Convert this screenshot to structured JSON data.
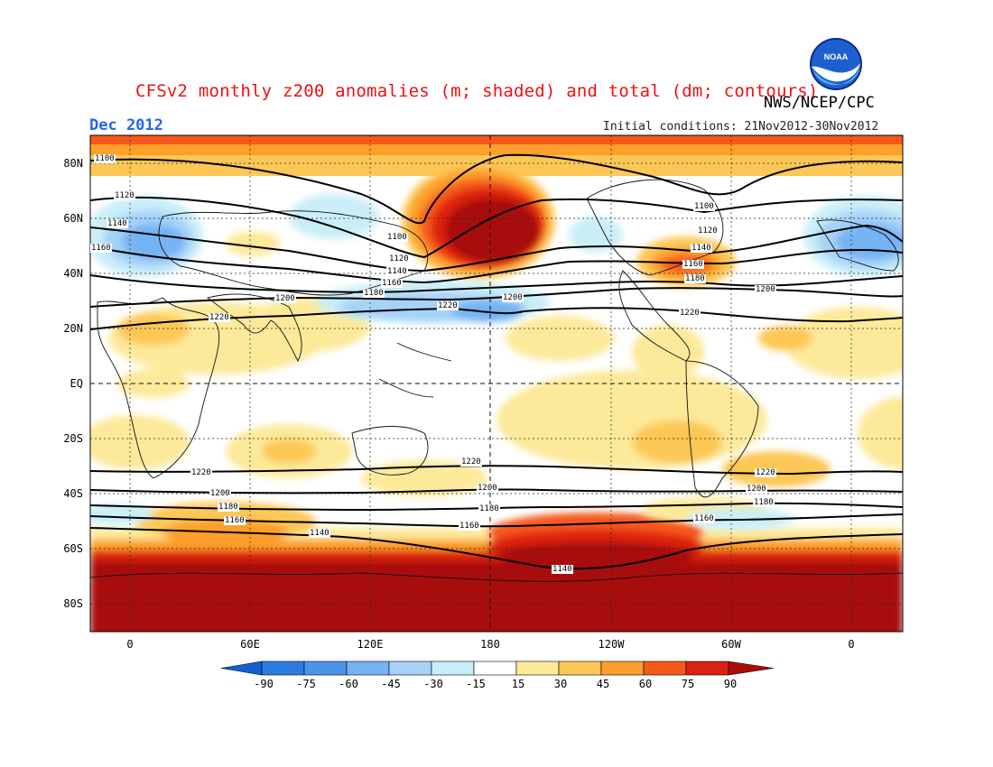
{
  "title": "CFSv2 monthly z200 anomalies (m; shaded) and total (dm; contours)",
  "agency": "NWS/NCEP/CPC",
  "logo_text": "NOAA",
  "month": "Dec 2012",
  "initial_conditions": "Initial conditions: 21Nov2012-30Nov2012",
  "lat_labels": [
    "80N",
    "60N",
    "40N",
    "20N",
    "EQ",
    "20S",
    "40S",
    "60S",
    "80S"
  ],
  "lon_labels": [
    "0",
    "60E",
    "120E",
    "180",
    "120W",
    "60W",
    "0"
  ],
  "colorbar": {
    "labels": [
      "-90",
      "-75",
      "-60",
      "-45",
      "-30",
      "-15",
      "15",
      "30",
      "45",
      "60",
      "75",
      "90"
    ],
    "colors": [
      "#1560d0",
      "#2a7ce0",
      "#4a95ea",
      "#76b3f2",
      "#a6d2f8",
      "#c9eef8",
      "#ffffff",
      "#fde99a",
      "#fdc757",
      "#fc9f2b",
      "#f6581b",
      "#dc2210",
      "#a80d08"
    ]
  },
  "contour_labels": [
    "1100",
    "1120",
    "1140",
    "1160",
    "1180",
    "1200",
    "1220"
  ],
  "colors": {
    "title": "#ee1111",
    "month": "#2266ee"
  }
}
